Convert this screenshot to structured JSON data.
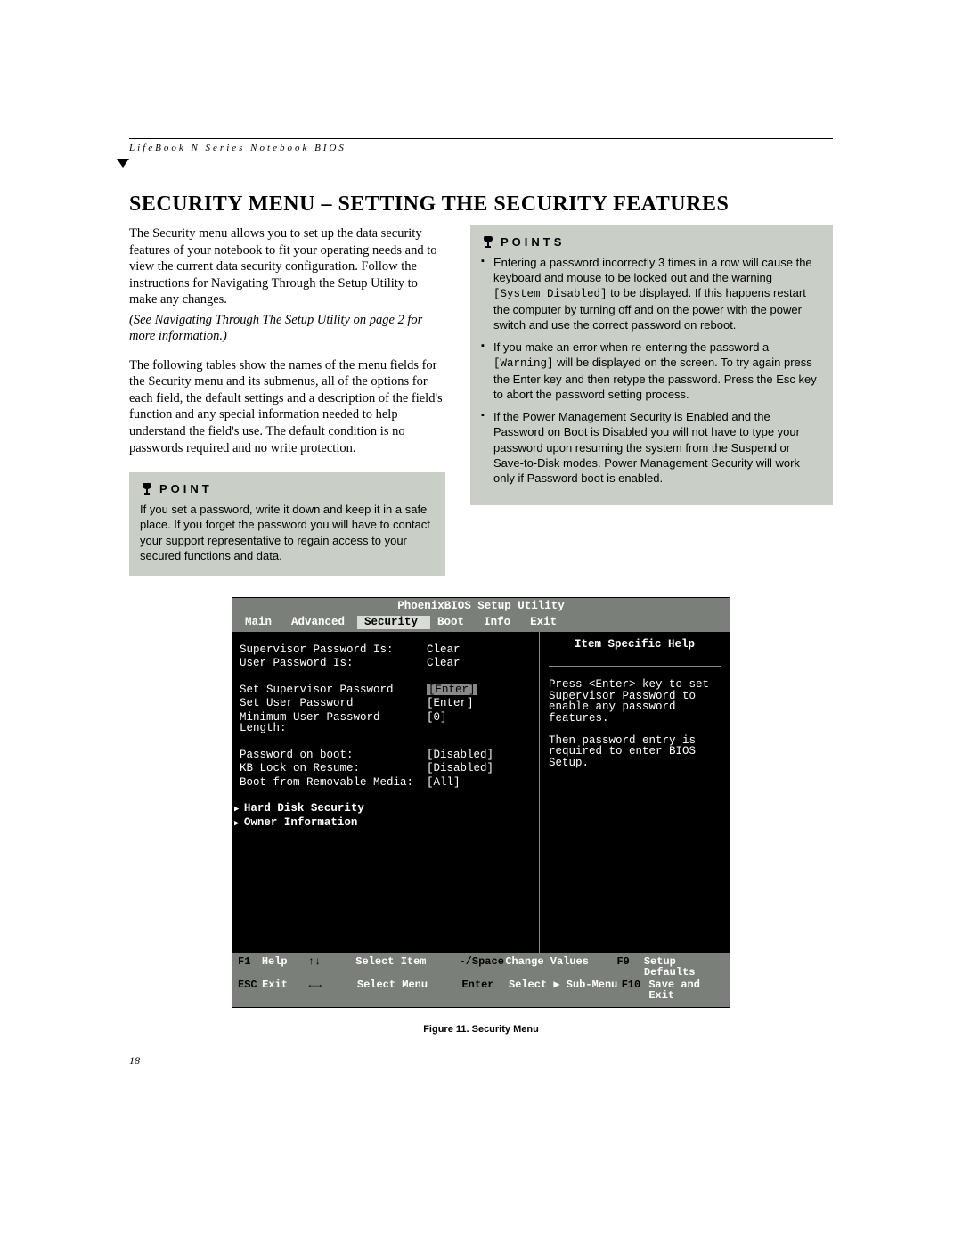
{
  "header": {
    "running_head": "LifeBook N Series Notebook BIOS",
    "page_number": "18"
  },
  "title": "SECURITY MENU – SETTING THE SECURITY FEATURES",
  "body": {
    "p1": "The Security menu allows you to set up the data security features of your notebook to fit your operating needs and to view the current data security configuration. Follow the instructions for Navigating Through the Setup Utility to make any changes.",
    "p1_ref": "(See Navigating Through The Setup Utility on page 2 for more information.)",
    "p2": "The following tables show the names of the menu fields for the Security menu and its submenus, all of the options for each field, the default settings and a description of the field's function and any special information needed to help understand the field's use. The default condition is no passwords required and no write protection."
  },
  "point_box": {
    "title": "POINT",
    "text": "If you set a password, write it down and keep it in a safe place. If you forget the password you will have to contact your support representative to regain access to your secured functions and data."
  },
  "points_box": {
    "title": "POINTS",
    "items": [
      {
        "pre": "Entering a password incorrectly 3 times in a row will cause the keyboard and mouse to be locked out and the warning ",
        "code": "[System Disabled]",
        "post": " to be displayed. If this happens restart the computer by turning off and on the power with the power switch and use the correct password on reboot."
      },
      {
        "pre": "If you make an error when re-entering the password a ",
        "code": "[Warning]",
        "post": " will be displayed on the screen. To try again press the Enter key and then retype the password. Press the Esc key to abort the password setting process."
      },
      {
        "pre": "If the Power Management Security is Enabled and the Password on Boot is Disabled you will not have to type your password upon resuming the system from the Suspend or Save-to-Disk modes. Power Management Security will work only if Password boot is enabled.",
        "code": "",
        "post": ""
      }
    ]
  },
  "bios": {
    "title": "PhoenixBIOS Setup Utility",
    "menu": [
      "Main",
      "Advanced",
      "Security",
      "Boot",
      "Info",
      "Exit"
    ],
    "selected_menu": "Security",
    "fields": [
      {
        "label": "Supervisor Password Is:",
        "value": "Clear",
        "hl": false
      },
      {
        "label": "User Password Is:",
        "value": "Clear",
        "hl": false
      }
    ],
    "fields2": [
      {
        "label": "Set Supervisor Password",
        "value": "[Enter]",
        "hl": true
      },
      {
        "label": "Set User Password",
        "value": "[Enter]",
        "hl": false
      },
      {
        "label": "Minimum User Password Length:",
        "value": "[0]",
        "hl": false
      }
    ],
    "fields3": [
      {
        "label": "Password on boot:",
        "value": "[Disabled]",
        "hl": false
      },
      {
        "label": "KB Lock on Resume:",
        "value": "[Disabled]",
        "hl": false
      },
      {
        "label": "Boot from Removable Media:",
        "value": "[All]",
        "hl": false
      }
    ],
    "submenus": [
      "Hard Disk Security",
      "Owner Information"
    ],
    "help_title": "Item Specific Help",
    "help_text": "Press <Enter> key to set Supervisor Password to enable any password features.\n\nThen password entry is required to enter BIOS Setup.",
    "footer": {
      "r1": {
        "k1": "F1",
        "l1": "Help",
        "sym": "↑↓",
        "act1": "Select Item",
        "k2": "-/Space",
        "act2": "Change Values",
        "k3": "F9",
        "l3": "Setup Defaults"
      },
      "r2": {
        "k1": "ESC",
        "l1": "Exit",
        "sym": "←→",
        "act1": "Select Menu",
        "k2": "Enter",
        "act2": "Select ▶ Sub-Menu",
        "k3": "F10",
        "l3": "Save and Exit"
      }
    }
  },
  "caption": "Figure 11.  Security Menu",
  "colors": {
    "box_bg": "#c9cec6",
    "bios_bar": "#7b7f79",
    "bios_bg": "#000000",
    "bios_fg": "#ffffff"
  }
}
